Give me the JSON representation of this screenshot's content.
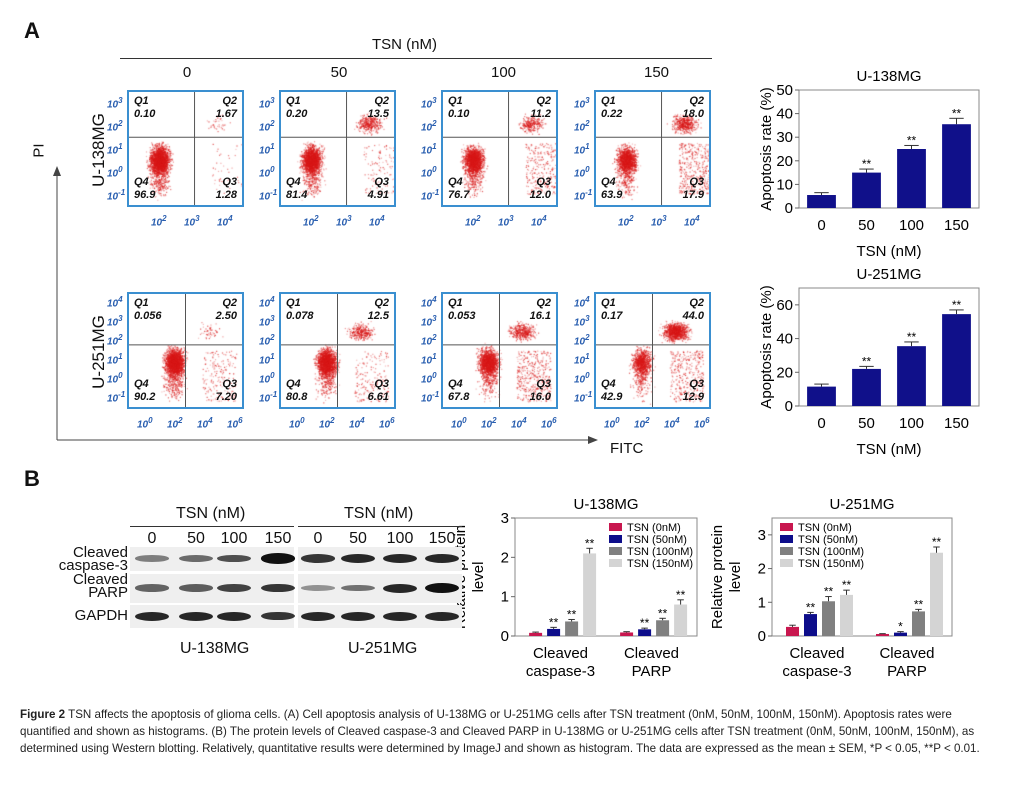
{
  "panel_a": {
    "letter": "A",
    "tsn_header": "TSN (nM)",
    "concentrations": [
      "0",
      "50",
      "100",
      "150"
    ],
    "y_axis": "PI",
    "x_axis": "FITC",
    "cell_lines": [
      "U-138MG",
      "U-251MG"
    ],
    "quadrant_names": [
      "Q1",
      "Q2",
      "Q3",
      "Q4"
    ],
    "rows": [
      {
        "y_ticks": [
          "-1",
          "0",
          "1",
          "2",
          "3"
        ],
        "x_ticks": [
          "2",
          "3",
          "4"
        ],
        "plots": [
          {
            "Q1": "0.10",
            "Q2": "1.67",
            "Q3": "1.28",
            "Q4": "96.9"
          },
          {
            "Q1": "0.20",
            "Q2": "13.5",
            "Q3": "4.91",
            "Q4": "81.4"
          },
          {
            "Q1": "0.10",
            "Q2": "11.2",
            "Q3": "12.0",
            "Q4": "76.7"
          },
          {
            "Q1": "0.22",
            "Q2": "18.0",
            "Q3": "17.9",
            "Q4": "63.9"
          }
        ]
      },
      {
        "y_ticks": [
          "-1",
          "0",
          "1",
          "2",
          "3",
          "4"
        ],
        "x_ticks": [
          "0",
          "2",
          "4",
          "6"
        ],
        "plots": [
          {
            "Q1": "0.056",
            "Q2": "2.50",
            "Q3": "7.20",
            "Q4": "90.2"
          },
          {
            "Q1": "0.078",
            "Q2": "12.5",
            "Q3": "6.61",
            "Q4": "80.8"
          },
          {
            "Q1": "0.053",
            "Q2": "16.1",
            "Q3": "16.0",
            "Q4": "67.8"
          },
          {
            "Q1": "0.17",
            "Q2": "44.0",
            "Q3": "12.9",
            "Q4": "42.9"
          }
        ]
      }
    ],
    "dot_color": "#d81818",
    "border_color": "#3a8fd0"
  },
  "panel_b": {
    "letter": "B",
    "tsn_header": "TSN (nM)",
    "concentrations": [
      "0",
      "50",
      "100",
      "150"
    ],
    "proteins": [
      "Cleaved caspase-3",
      "Cleaved PARP",
      "GAPDH"
    ],
    "cell_lines": [
      "U-138MG",
      "U-251MG"
    ]
  },
  "chart_data": [
    {
      "type": "bar",
      "title": "U-138MG",
      "xlabel": "TSN (nM)",
      "ylabel": "Apoptosis rate (%)",
      "categories": [
        "0",
        "50",
        "100",
        "150"
      ],
      "values": [
        5.5,
        15,
        25,
        35.5
      ],
      "errors": [
        1,
        1.5,
        1.5,
        2.5
      ],
      "significance": [
        "",
        "**",
        "**",
        "**"
      ],
      "ylim": [
        0,
        50
      ],
      "yticks": [
        0,
        10,
        20,
        30,
        40,
        50
      ],
      "color": "#10108a"
    },
    {
      "type": "bar",
      "title": "U-251MG",
      "xlabel": "TSN (nM)",
      "ylabel": "Apoptosis rate (%)",
      "categories": [
        "0",
        "50",
        "100",
        "150"
      ],
      "values": [
        11.5,
        22,
        35.5,
        54.5
      ],
      "errors": [
        1.5,
        1.5,
        2.5,
        2.5
      ],
      "significance": [
        "",
        "**",
        "**",
        "**"
      ],
      "ylim": [
        0,
        70
      ],
      "yticks": [
        0,
        20,
        40,
        60
      ],
      "color": "#10108a"
    },
    {
      "type": "bar",
      "title": "U-138MG",
      "ylabel": "Relative protein level",
      "categories": [
        "Cleaved caspase-3",
        "Cleaved PARP"
      ],
      "ylim": [
        0,
        3
      ],
      "yticks": [
        0,
        1,
        2,
        3
      ],
      "legend": "top-right",
      "series": [
        {
          "name": "TSN (0nM)",
          "color": "#c8174f",
          "values": [
            0.08,
            0.09
          ],
          "errors": [
            0.02,
            0.02
          ],
          "significance": [
            "",
            ""
          ]
        },
        {
          "name": "TSN (50nM)",
          "color": "#0d0d8a",
          "values": [
            0.18,
            0.17
          ],
          "errors": [
            0.04,
            0.03
          ],
          "significance": [
            "**",
            "**"
          ]
        },
        {
          "name": "TSN (100nM)",
          "color": "#808080",
          "values": [
            0.37,
            0.4
          ],
          "errors": [
            0.05,
            0.05
          ],
          "significance": [
            "**",
            "**"
          ]
        },
        {
          "name": "TSN (150nM)",
          "color": "#d4d4d4",
          "values": [
            2.1,
            0.8
          ],
          "errors": [
            0.13,
            0.12
          ],
          "significance": [
            "**",
            "**"
          ]
        }
      ]
    },
    {
      "type": "bar",
      "title": "U-251MG",
      "ylabel": "Relative protein level",
      "categories": [
        "Cleaved caspase-3",
        "Cleaved PARP"
      ],
      "ylim": [
        0,
        3.5
      ],
      "yticks": [
        0,
        1,
        2,
        3
      ],
      "legend": "top-left",
      "series": [
        {
          "name": "TSN (0nM)",
          "color": "#c8174f",
          "values": [
            0.27,
            0.06
          ],
          "errors": [
            0.05,
            0.01
          ],
          "significance": [
            "",
            ""
          ]
        },
        {
          "name": "TSN (50nM)",
          "color": "#0d0d8a",
          "values": [
            0.65,
            0.1
          ],
          "errors": [
            0.05,
            0.03
          ],
          "significance": [
            "**",
            "*"
          ]
        },
        {
          "name": "TSN (100nM)",
          "color": "#808080",
          "values": [
            1.03,
            0.73
          ],
          "errors": [
            0.14,
            0.06
          ],
          "significance": [
            "**",
            "**"
          ]
        },
        {
          "name": "TSN (150nM)",
          "color": "#d4d4d4",
          "values": [
            1.22,
            2.47
          ],
          "errors": [
            0.14,
            0.17
          ],
          "significance": [
            "**",
            "**"
          ]
        }
      ]
    }
  ],
  "caption": {
    "label": "Figure 2",
    "text": " TSN affects the apoptosis of glioma cells. (A) Cell apoptosis analysis of U-138MG or U-251MG cells after TSN treatment (0nM, 50nM, 100nM, 150nM). Apoptosis rates were quantified and shown as histograms. (B) The protein levels of Cleaved caspase-3 and Cleaved PARP in U-138MG or U-251MG cells after TSN treatment (0nM, 50nM, 100nM, 150nM), as determined using Western blotting. Relatively, quantitative results were determined by ImageJ and shown as histogram. The data are expressed as the mean ± SEM, *P < 0.05, **P < 0.01."
  }
}
